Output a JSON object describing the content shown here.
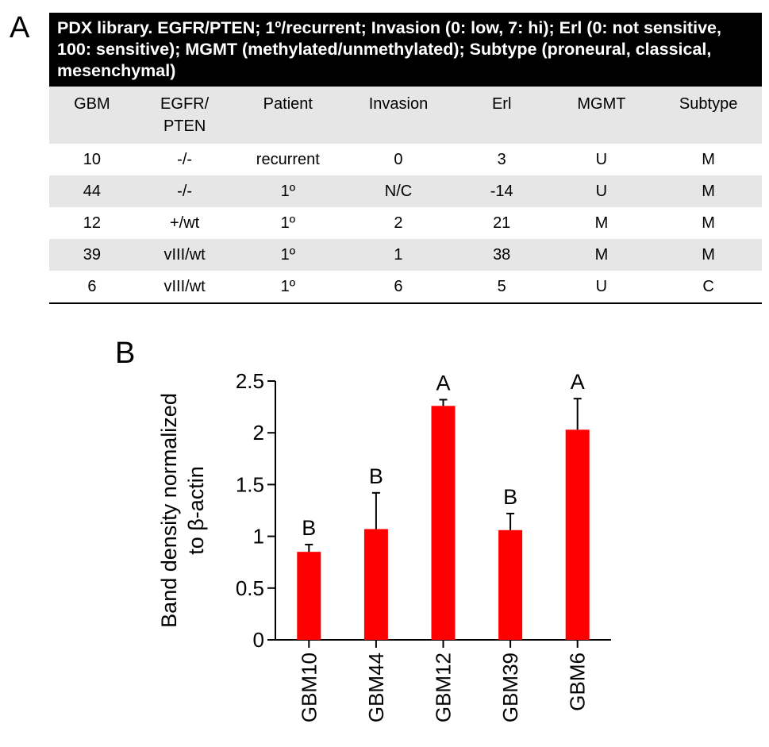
{
  "panel_a": {
    "letter": "A",
    "title": "PDX library. EGFR/PTEN; 1º/recurrent; Invasion (0: low, 7: hi); Erl (0: not sensitive, 100: sensitive); MGMT (methylated/unmethylated); Subtype (proneural, classical, mesenchymal)",
    "headers": [
      "GBM",
      "EGFR/\nPTEN",
      "Patient",
      "Invasion",
      "Erl",
      "MGMT",
      "Subtype"
    ],
    "rows": [
      [
        "10",
        "-/-",
        "recurrent",
        "0",
        "3",
        "U",
        "M"
      ],
      [
        "44",
        "-/-",
        "1º",
        "N/C",
        "-14",
        "U",
        "M"
      ],
      [
        "12",
        "+/wt",
        "1º",
        "2",
        "21",
        "M",
        "M"
      ],
      [
        "39",
        "vIII/wt",
        "1º",
        "1",
        "38",
        "M",
        "M"
      ],
      [
        "6",
        "vIII/wt",
        "1º",
        "6",
        "5",
        "U",
        "C"
      ]
    ]
  },
  "chart_data": {
    "type": "bar",
    "panel_letter": "B",
    "title": "",
    "xlabel": "",
    "ylabel": [
      "Band density normalized",
      "to β-actin"
    ],
    "categories": [
      "GBM10",
      "GBM44",
      "GBM12",
      "GBM39",
      "GBM6"
    ],
    "values": [
      0.85,
      1.07,
      2.26,
      1.06,
      2.03
    ],
    "error": [
      0.07,
      0.35,
      0.06,
      0.16,
      0.3
    ],
    "annotations": [
      "B",
      "B",
      "A",
      "B",
      "A"
    ],
    "ylim": [
      0,
      2.5
    ],
    "yticks": [
      0,
      0.5,
      1,
      1.5,
      2,
      2.5
    ],
    "ytick_labels": [
      "0",
      "0.5",
      "1",
      "1.5",
      "2",
      "2.5"
    ],
    "bar_color": "#ff0000",
    "grid": false,
    "legend": "none"
  }
}
